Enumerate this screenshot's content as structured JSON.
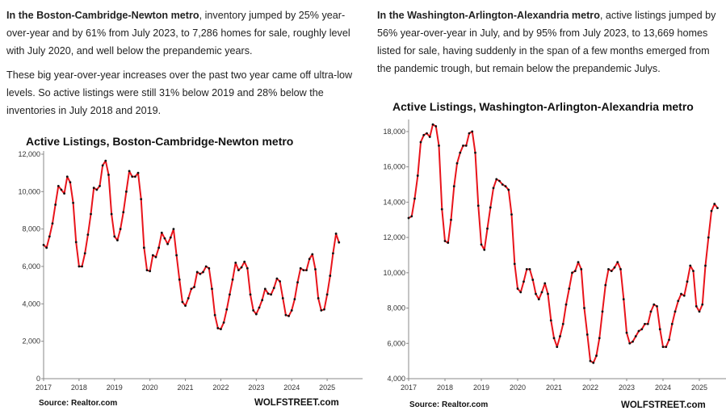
{
  "left": {
    "para1_lead": "In the Boston-Cambridge-Newton metro",
    "para1_rest": ", inventory jumped by 25% year-over-year and by 61% from July 2023, to 7,286 homes for sale, roughly level with July 2020, and well below the prepandemic years.",
    "para2": "These big year-over-year increases over the past two year came off ultra-low levels.  So active listings were still 31% below 2019 and 28% below the inventories in July 2018 and 2019.",
    "source": "Source: Realtor.com",
    "brand": "WOLFSTREET.com"
  },
  "right": {
    "para1_lead": "In the Washington-Arlington-Alexandria metro",
    "para1_rest": ", active listings jumped by 56% year-over-year in July, and by 95% from July 2023, to 13,669 homes listed for sale, having suddenly in the span of a few months emerged from the pandemic trough, but remain below the prepandemic Julys.",
    "source": "Source: Realtor.com",
    "brand": "WOLFSTREET.com"
  },
  "colors": {
    "line": "#e8141b",
    "marker": "#111111",
    "axis": "#888888"
  },
  "chart_data": [
    {
      "type": "line",
      "title": "Active Listings, Boston-Cambridge-Newton metro",
      "xlabel": "",
      "ylabel": "",
      "x_start": "2017-01",
      "frequency": "monthly",
      "x_ticks": [
        "2017",
        "2018",
        "2019",
        "2020",
        "2021",
        "2022",
        "2023",
        "2024",
        "2025"
      ],
      "y_ticks": [
        "0",
        "2,000",
        "4,000",
        "6,000",
        "8,000",
        "10,000",
        "12,000"
      ],
      "ylim": [
        0,
        12000
      ],
      "grid": false,
      "values": [
        7150,
        7000,
        7600,
        8300,
        9300,
        10300,
        10100,
        9900,
        10800,
        10500,
        9400,
        7300,
        6000,
        6000,
        6700,
        7700,
        8800,
        10200,
        10100,
        10300,
        11400,
        11650,
        10900,
        8800,
        7600,
        7400,
        8000,
        8900,
        10000,
        11100,
        10800,
        10800,
        11000,
        9600,
        7000,
        5800,
        5750,
        6600,
        6500,
        7000,
        7800,
        7500,
        7200,
        7550,
        8000,
        6600,
        5300,
        4100,
        3900,
        4300,
        4800,
        4900,
        5700,
        5600,
        5700,
        6000,
        5900,
        4800,
        3400,
        2700,
        2650,
        3000,
        3700,
        4500,
        5300,
        6200,
        5800,
        5950,
        6250,
        5900,
        4500,
        3650,
        3450,
        3800,
        4200,
        4800,
        4550,
        4500,
        4850,
        5350,
        5200,
        4300,
        3400,
        3350,
        3650,
        4250,
        5150,
        5900,
        5800,
        5800,
        6400,
        6650,
        5850,
        4300,
        3650,
        3700,
        4500,
        5500,
        6700,
        7750,
        7286
      ]
    },
    {
      "type": "line",
      "title": "Active Listings, Washington-Arlington-Alexandria metro",
      "xlabel": "",
      "ylabel": "",
      "x_start": "2017-01",
      "frequency": "monthly",
      "x_ticks": [
        "2017",
        "2018",
        "2019",
        "2020",
        "2021",
        "2022",
        "2023",
        "2024",
        "2025"
      ],
      "y_ticks": [
        "4,000",
        "6,000",
        "8,000",
        "10,000",
        "12,000",
        "14,000",
        "16,000",
        "18,000"
      ],
      "ylim": [
        4000,
        18500
      ],
      "grid": false,
      "values": [
        13100,
        13200,
        14200,
        15500,
        17400,
        17800,
        17900,
        17700,
        18400,
        18300,
        17200,
        13600,
        11800,
        11700,
        13000,
        14900,
        16200,
        16800,
        17200,
        17200,
        17900,
        18000,
        16800,
        13800,
        11600,
        11300,
        12500,
        13700,
        14800,
        15300,
        15200,
        15000,
        14900,
        14700,
        13300,
        10500,
        9100,
        8900,
        9500,
        10200,
        10200,
        9600,
        8800,
        8500,
        8900,
        9400,
        8800,
        7300,
        6300,
        5800,
        6400,
        7100,
        8200,
        9100,
        10000,
        10100,
        10600,
        10200,
        8000,
        6500,
        5000,
        4900,
        5300,
        6300,
        7800,
        9300,
        10200,
        10100,
        10300,
        10600,
        10200,
        8500,
        6600,
        6000,
        6100,
        6400,
        6700,
        6800,
        7100,
        7100,
        7800,
        8200,
        8100,
        6800,
        5800,
        5800,
        6200,
        7100,
        7800,
        8400,
        8800,
        8700,
        9500,
        10400,
        10100,
        8100,
        7800,
        8200,
        10400,
        12000,
        13500,
        13900,
        13669
      ]
    }
  ]
}
